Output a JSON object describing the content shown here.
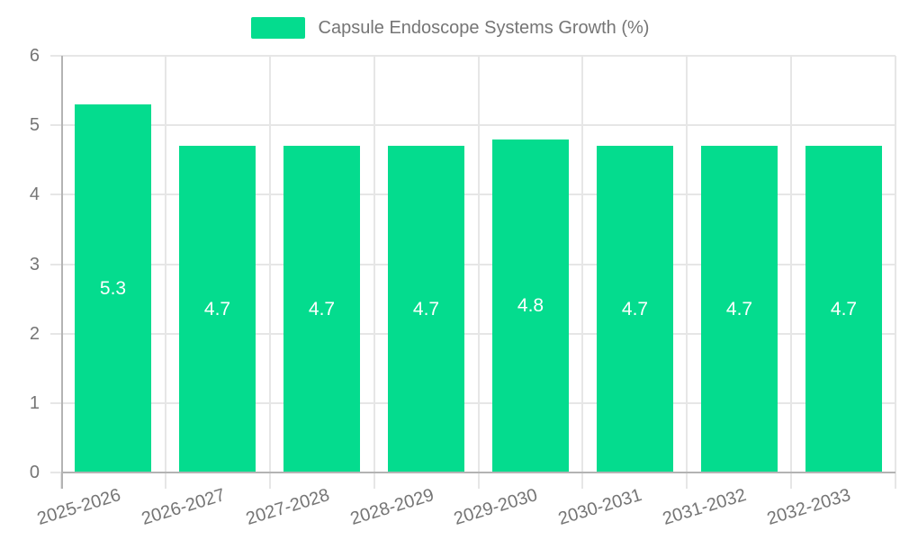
{
  "chart_data": {
    "type": "bar",
    "title": "Capsule Endoscope Systems Growth (%)",
    "legend": {
      "label": "Capsule Endoscope Systems Growth (%)",
      "position": "top"
    },
    "categories": [
      "2025-2026",
      "2026-2027",
      "2027-2028",
      "2028-2029",
      "2029-2030",
      "2030-2031",
      "2031-2032",
      "2032-2033"
    ],
    "values": [
      5.3,
      4.7,
      4.7,
      4.7,
      4.8,
      4.7,
      4.7,
      4.7
    ],
    "value_labels": [
      "5.3",
      "4.7",
      "4.7",
      "4.7",
      "4.8",
      "4.7",
      "4.7",
      "4.7"
    ],
    "xlabel": "",
    "ylabel": "",
    "ylim": [
      0,
      6
    ],
    "yticks": [
      "0",
      "1",
      "2",
      "3",
      "4",
      "5",
      "6"
    ],
    "grid": true,
    "colors": {
      "bar": "#04DC8E",
      "value_label": "#FFFFFF",
      "axis_text": "#757575",
      "legend_text": "#757575",
      "gridline": "#E6E6E6",
      "axis_line": "#B3B3B3"
    }
  }
}
